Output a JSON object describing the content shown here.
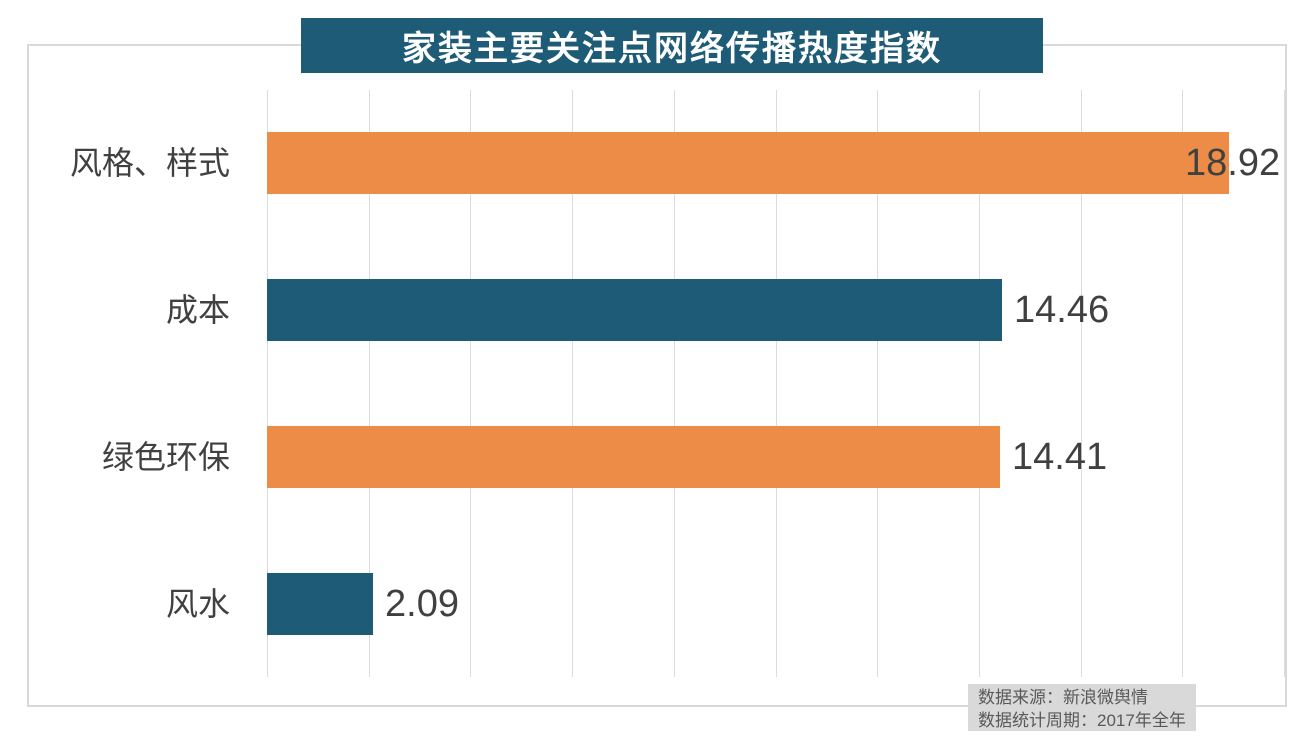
{
  "title": "家装主要关注点网络传播热度指数",
  "source": {
    "line1": "数据来源：新浪微舆情",
    "line2": "数据统计周期：2017年全年"
  },
  "colors": {
    "teal": "#1e5b76",
    "orange": "#ec8c47",
    "title_bg": "#1e5b76",
    "title_text": "#ffffff",
    "label_text": "#404040",
    "value_text": "#404040",
    "gridline": "#dcdcdc",
    "border": "#d9d9d9",
    "source_bg": "#d9d9d9",
    "source_text": "#595959",
    "background": "#ffffff"
  },
  "chart_data": {
    "type": "bar",
    "orientation": "horizontal",
    "title": "家装主要关注点网络传播热度指数",
    "categories": [
      "风格、样式",
      "成本",
      "绿色环保",
      "风水"
    ],
    "values": [
      18.92,
      14.46,
      14.41,
      2.09
    ],
    "value_labels": [
      "18.92",
      "14.46",
      "14.41",
      "2.09"
    ],
    "bar_colors": [
      "#ec8c47",
      "#1e5b76",
      "#ec8c47",
      "#1e5b76"
    ],
    "xlabel": "",
    "ylabel": "",
    "xlim": [
      0,
      20
    ],
    "grid_step": 2,
    "grid": true,
    "legend": false,
    "value_labels_position": "outside-end",
    "annotations": [
      "数据来源：新浪微舆情",
      "数据统计周期：2017年全年"
    ]
  }
}
